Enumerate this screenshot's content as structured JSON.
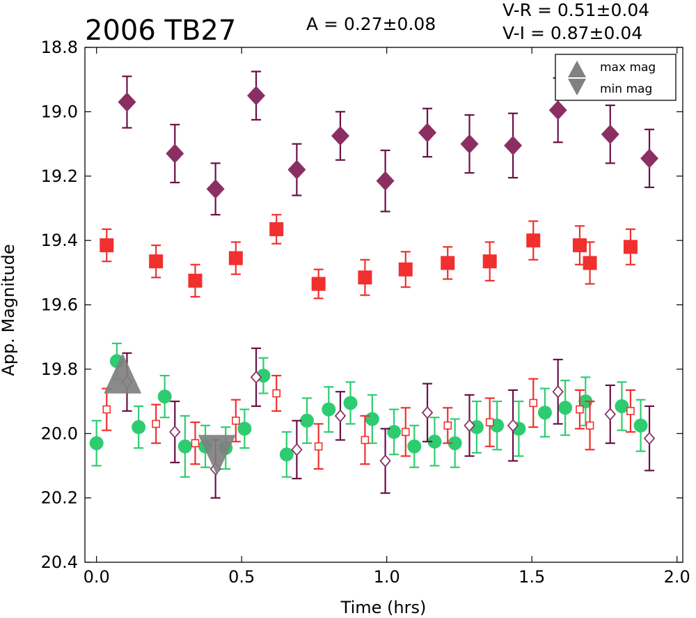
{
  "chart_data": {
    "type": "scatter",
    "title": "2006 TB27",
    "annotations": {
      "amplitude": "A  = 0.27±0.08",
      "v_r": "V-R = 0.51±0.04",
      "v_i": "V-I  = 0.87±0.04"
    },
    "xlabel": "Time (hrs)",
    "ylabel": "App. Magnitude",
    "xlim": [
      -0.04,
      2.02
    ],
    "ylim": [
      20.4,
      18.8
    ],
    "y_inverted": true,
    "xticks": [
      "0.0",
      "0.5",
      "1.0",
      "1.5",
      "2.0"
    ],
    "yticks": [
      "18.8",
      "19.0",
      "19.2",
      "19.4",
      "19.6",
      "19.8",
      "20.0",
      "20.2",
      "20.4"
    ],
    "grid": false,
    "legend": {
      "placement": "top-right",
      "entries": [
        {
          "label": "max mag",
          "marker": "triangle-up"
        },
        {
          "label": "min mag",
          "marker": "triangle-down"
        }
      ]
    },
    "colors": {
      "green": "#2ecc71",
      "red": "#f0302e",
      "purple": "#8b2f63",
      "purple_err": "#6a0f45",
      "gray": "#808080"
    },
    "series": [
      {
        "marker": "diamond-filled",
        "color": "#8b2f63",
        "errcolor": "#6a0f45",
        "points": [
          [
            0.105,
            18.97,
            0.08
          ],
          [
            0.27,
            19.13,
            0.09
          ],
          [
            0.41,
            19.24,
            0.08
          ],
          [
            0.55,
            18.95,
            0.075
          ],
          [
            0.69,
            19.18,
            0.08
          ],
          [
            0.84,
            19.075,
            0.075
          ],
          [
            0.995,
            19.215,
            0.095
          ],
          [
            1.14,
            19.065,
            0.075
          ],
          [
            1.285,
            19.1,
            0.09
          ],
          [
            1.435,
            19.105,
            0.1
          ],
          [
            1.59,
            18.995,
            0.1
          ],
          [
            1.77,
            19.07,
            0.09
          ],
          [
            1.905,
            19.145,
            0.09
          ]
        ]
      },
      {
        "marker": "square-filled",
        "color": "#f0302e",
        "errcolor": "#f0302e",
        "points": [
          [
            0.035,
            19.415,
            0.05
          ],
          [
            0.205,
            19.465,
            0.05
          ],
          [
            0.34,
            19.525,
            0.05
          ],
          [
            0.48,
            19.455,
            0.05
          ],
          [
            0.62,
            19.365,
            0.045
          ],
          [
            0.765,
            19.535,
            0.045
          ],
          [
            0.925,
            19.515,
            0.055
          ],
          [
            1.065,
            19.49,
            0.055
          ],
          [
            1.21,
            19.47,
            0.05
          ],
          [
            1.355,
            19.465,
            0.06
          ],
          [
            1.505,
            19.4,
            0.06
          ],
          [
            1.665,
            19.415,
            0.06
          ],
          [
            1.7,
            19.47,
            0.065
          ],
          [
            1.84,
            19.42,
            0.055
          ]
        ]
      },
      {
        "marker": "circle-filled",
        "color": "#2ecc71",
        "errcolor": "#2ecc71",
        "points": [
          [
            0.0,
            20.03,
            0.07
          ],
          [
            0.07,
            19.775,
            0.055
          ],
          [
            0.145,
            19.98,
            0.065
          ],
          [
            0.235,
            19.885,
            0.065
          ],
          [
            0.305,
            20.04,
            0.095
          ],
          [
            0.375,
            20.04,
            0.065
          ],
          [
            0.445,
            20.045,
            0.065
          ],
          [
            0.51,
            19.985,
            0.06
          ],
          [
            0.575,
            19.82,
            0.055
          ],
          [
            0.655,
            20.065,
            0.07
          ],
          [
            0.725,
            19.96,
            0.07
          ],
          [
            0.8,
            19.925,
            0.07
          ],
          [
            0.875,
            19.905,
            0.065
          ],
          [
            0.95,
            19.955,
            0.075
          ],
          [
            1.025,
            19.995,
            0.07
          ],
          [
            1.095,
            20.04,
            0.065
          ],
          [
            1.165,
            20.025,
            0.075
          ],
          [
            1.235,
            20.03,
            0.075
          ],
          [
            1.31,
            19.98,
            0.08
          ],
          [
            1.38,
            19.975,
            0.075
          ],
          [
            1.455,
            19.985,
            0.085
          ],
          [
            1.545,
            19.935,
            0.075
          ],
          [
            1.615,
            19.92,
            0.085
          ],
          [
            1.685,
            19.9,
            0.075
          ],
          [
            1.81,
            19.915,
            0.075
          ],
          [
            1.875,
            19.975,
            0.08
          ]
        ]
      },
      {
        "marker": "square-open",
        "color": "#f0302e",
        "errcolor": "#f0302e",
        "points": [
          [
            0.035,
            19.925,
            0.065
          ],
          [
            0.205,
            19.97,
            0.06
          ],
          [
            0.34,
            20.03,
            0.065
          ],
          [
            0.48,
            19.96,
            0.065
          ],
          [
            0.62,
            19.875,
            0.055
          ],
          [
            0.765,
            20.04,
            0.07
          ],
          [
            0.925,
            20.02,
            0.075
          ],
          [
            1.065,
            19.995,
            0.075
          ],
          [
            1.21,
            19.975,
            0.055
          ],
          [
            1.355,
            19.965,
            0.075
          ],
          [
            1.505,
            19.905,
            0.075
          ],
          [
            1.665,
            19.925,
            0.06
          ],
          [
            1.7,
            19.975,
            0.075
          ],
          [
            1.84,
            19.93,
            0.065
          ]
        ]
      },
      {
        "marker": "diamond-open",
        "color": "#8b2f63",
        "errcolor": "#6a0f45",
        "points": [
          [
            0.105,
            19.84,
            0.09
          ],
          [
            0.27,
            19.995,
            0.095
          ],
          [
            0.41,
            20.11,
            0.09
          ],
          [
            0.55,
            19.825,
            0.09
          ],
          [
            0.69,
            20.05,
            0.09
          ],
          [
            0.84,
            19.945,
            0.075
          ],
          [
            0.995,
            20.085,
            0.1
          ],
          [
            1.14,
            19.935,
            0.09
          ],
          [
            1.285,
            19.975,
            0.095
          ],
          [
            1.435,
            19.975,
            0.11
          ],
          [
            1.59,
            19.87,
            0.1
          ],
          [
            1.77,
            19.94,
            0.09
          ],
          [
            1.905,
            20.015,
            0.1
          ]
        ]
      }
    ],
    "extrema": [
      {
        "marker": "triangle-up",
        "x": 0.09,
        "y": 19.815,
        "color": "#808080"
      },
      {
        "marker": "triangle-down",
        "x": 0.415,
        "y": 20.065,
        "color": "#808080"
      }
    ]
  }
}
